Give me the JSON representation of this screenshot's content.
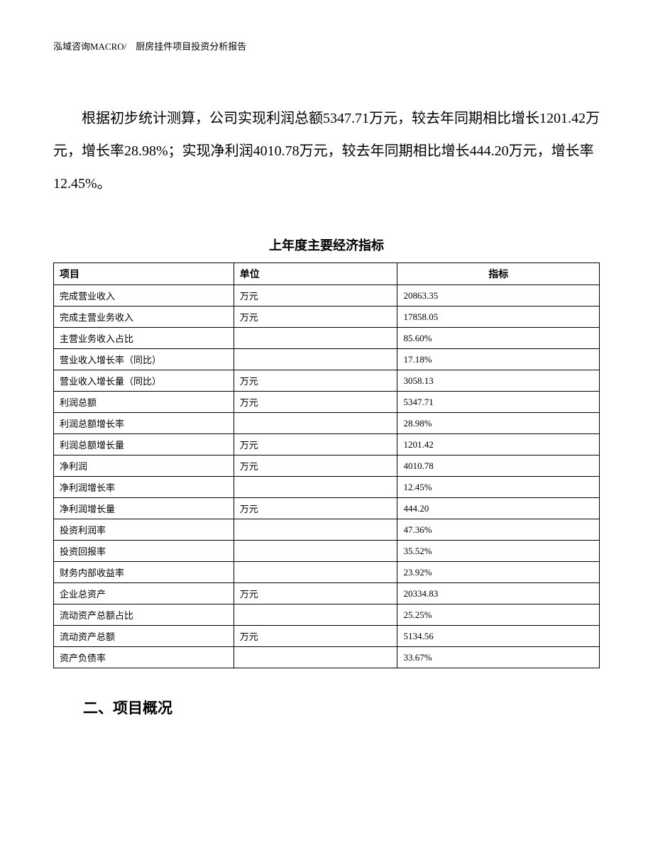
{
  "header": {
    "text": "泓域咨询MACRO/　厨房挂件项目投资分析报告"
  },
  "paragraph": {
    "text": "根据初步统计测算，公司实现利润总额5347.71万元，较去年同期相比增长1201.42万元，增长率28.98%；实现净利润4010.78万元，较去年同期相比增长444.20万元，增长率12.45%。"
  },
  "table": {
    "title": "上年度主要经济指标",
    "columns": [
      "项目",
      "单位",
      "指标"
    ],
    "rows": [
      [
        "完成营业收入",
        "万元",
        "20863.35"
      ],
      [
        "完成主营业务收入",
        "万元",
        "17858.05"
      ],
      [
        "主营业务收入占比",
        "",
        "85.60%"
      ],
      [
        "营业收入增长率（同比）",
        "",
        "17.18%"
      ],
      [
        "营业收入增长量（同比）",
        "万元",
        "3058.13"
      ],
      [
        "利润总额",
        "万元",
        "5347.71"
      ],
      [
        "利润总额增长率",
        "",
        "28.98%"
      ],
      [
        "利润总额增长量",
        "万元",
        "1201.42"
      ],
      [
        "净利润",
        "万元",
        "4010.78"
      ],
      [
        "净利润增长率",
        "",
        "12.45%"
      ],
      [
        "净利润增长量",
        "万元",
        "444.20"
      ],
      [
        "投资利润率",
        "",
        "47.36%"
      ],
      [
        "投资回报率",
        "",
        "35.52%"
      ],
      [
        "财务内部收益率",
        "",
        "23.92%"
      ],
      [
        "企业总资产",
        "万元",
        "20334.83"
      ],
      [
        "流动资产总额占比",
        "",
        "25.25%"
      ],
      [
        "流动资产总额",
        "万元",
        "5134.56"
      ],
      [
        "资产负债率",
        "",
        "33.67%"
      ]
    ]
  },
  "section": {
    "heading": "二、项目概况"
  }
}
